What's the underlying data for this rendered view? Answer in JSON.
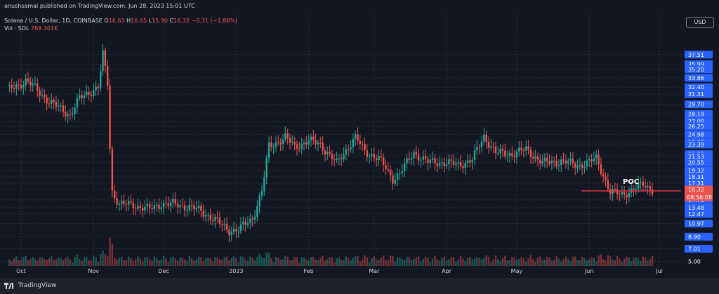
{
  "header": {
    "published": "anushsamal published on TradingView.com, Jun 28, 2023 15:01 UTC",
    "symbol": "Solana / U.S. Dollar, 1D, COINBASE",
    "o_label": "O",
    "o_value": "16.63",
    "h_label": "H",
    "h_value": "16.65",
    "l_label": "L",
    "l_value": "15.90",
    "c_label": "C",
    "c_value": "16.32",
    "change": "−0.31 (−1.86%)",
    "vol_label": "Vol · SOL",
    "vol_value": "769.301K"
  },
  "currency": "USD",
  "footer": {
    "brand": "TradingView"
  },
  "colors": {
    "up": "#26a69a",
    "down": "#ef5350",
    "background": "#131722",
    "grid": "#2a2e39",
    "axis_label_bg": "#2962ff",
    "poc": "#f23645"
  },
  "chart_data": {
    "type": "candlestick",
    "interval": "1D",
    "y_axis_labels": [
      "37.51",
      "35.99",
      "35.20",
      "33.86",
      "32.40",
      "31.31",
      "29.70",
      "28.19",
      "27.00",
      "26.25",
      "24.98",
      "23.75",
      "23.39",
      "21.88",
      "21.53",
      "20.55",
      "19.32",
      "18.31",
      "17.31",
      "16.32",
      "14.70",
      "13.48",
      "12.47",
      "10.97",
      "8.90",
      "7.01",
      "5.00"
    ],
    "last_price": "16.32",
    "countdown": "08:58:08",
    "poc_label": "POC",
    "poc_price": 16.1,
    "x_labels": [
      {
        "label": "Oct",
        "date": "2022-10-01"
      },
      {
        "label": "Nov",
        "date": "2022-11-01"
      },
      {
        "label": "Dec",
        "date": "2022-12-01"
      },
      {
        "label": "2023",
        "date": "2023-01-01"
      },
      {
        "label": "Feb",
        "date": "2023-02-01"
      },
      {
        "label": "Mar",
        "date": "2023-03-01"
      },
      {
        "label": "Apr",
        "date": "2023-04-01"
      },
      {
        "label": "May",
        "date": "2023-05-01"
      },
      {
        "label": "Jun",
        "date": "2023-06-01"
      },
      {
        "label": "Jul",
        "date": "2023-07-01"
      }
    ],
    "close_path": [
      [
        "2022-09-26",
        32.0
      ],
      [
        "2022-10-03",
        33.4
      ],
      [
        "2022-10-07",
        32.3
      ],
      [
        "2022-10-13",
        30.1
      ],
      [
        "2022-10-18",
        29.0
      ],
      [
        "2022-10-22",
        28.0
      ],
      [
        "2022-10-26",
        30.6
      ],
      [
        "2022-10-30",
        31.6
      ],
      [
        "2022-11-03",
        32.4
      ],
      [
        "2022-11-05",
        37.5
      ],
      [
        "2022-11-07",
        33.0
      ],
      [
        "2022-11-08",
        23.0
      ],
      [
        "2022-11-09",
        16.0
      ],
      [
        "2022-11-12",
        14.0
      ],
      [
        "2022-11-18",
        13.9
      ],
      [
        "2022-11-25",
        13.2
      ],
      [
        "2022-11-30",
        14.1
      ],
      [
        "2022-12-05",
        14.0
      ],
      [
        "2022-12-12",
        13.6
      ],
      [
        "2022-12-17",
        12.9
      ],
      [
        "2022-12-22",
        11.8
      ],
      [
        "2022-12-29",
        9.9
      ],
      [
        "2023-01-02",
        10.0
      ],
      [
        "2023-01-08",
        11.8
      ],
      [
        "2023-01-12",
        16.0
      ],
      [
        "2023-01-15",
        23.1
      ],
      [
        "2023-01-22",
        24.5
      ],
      [
        "2023-01-26",
        23.0
      ],
      [
        "2023-02-01",
        24.0
      ],
      [
        "2023-02-06",
        23.4
      ],
      [
        "2023-02-13",
        20.4
      ],
      [
        "2023-02-18",
        23.1
      ],
      [
        "2023-02-21",
        24.5
      ],
      [
        "2023-02-25",
        22.3
      ],
      [
        "2023-03-03",
        21.2
      ],
      [
        "2023-03-09",
        18.0
      ],
      [
        "2023-03-12",
        18.9
      ],
      [
        "2023-03-18",
        22.1
      ],
      [
        "2023-03-24",
        20.6
      ],
      [
        "2023-03-30",
        20.6
      ],
      [
        "2023-04-06",
        20.2
      ],
      [
        "2023-04-12",
        21.0
      ],
      [
        "2023-04-17",
        24.7
      ],
      [
        "2023-04-22",
        22.1
      ],
      [
        "2023-04-29",
        21.9
      ],
      [
        "2023-05-05",
        22.6
      ],
      [
        "2023-05-12",
        20.5
      ],
      [
        "2023-05-20",
        20.8
      ],
      [
        "2023-05-27",
        20.1
      ],
      [
        "2023-06-01",
        20.6
      ],
      [
        "2023-06-04",
        21.2
      ],
      [
        "2023-06-07",
        18.6
      ],
      [
        "2023-06-10",
        15.9
      ],
      [
        "2023-06-15",
        15.5
      ],
      [
        "2023-06-20",
        16.4
      ],
      [
        "2023-06-24",
        17.1
      ],
      [
        "2023-06-28",
        16.32
      ]
    ],
    "volume": {
      "unit": "SOL",
      "last": "769.301K"
    }
  }
}
